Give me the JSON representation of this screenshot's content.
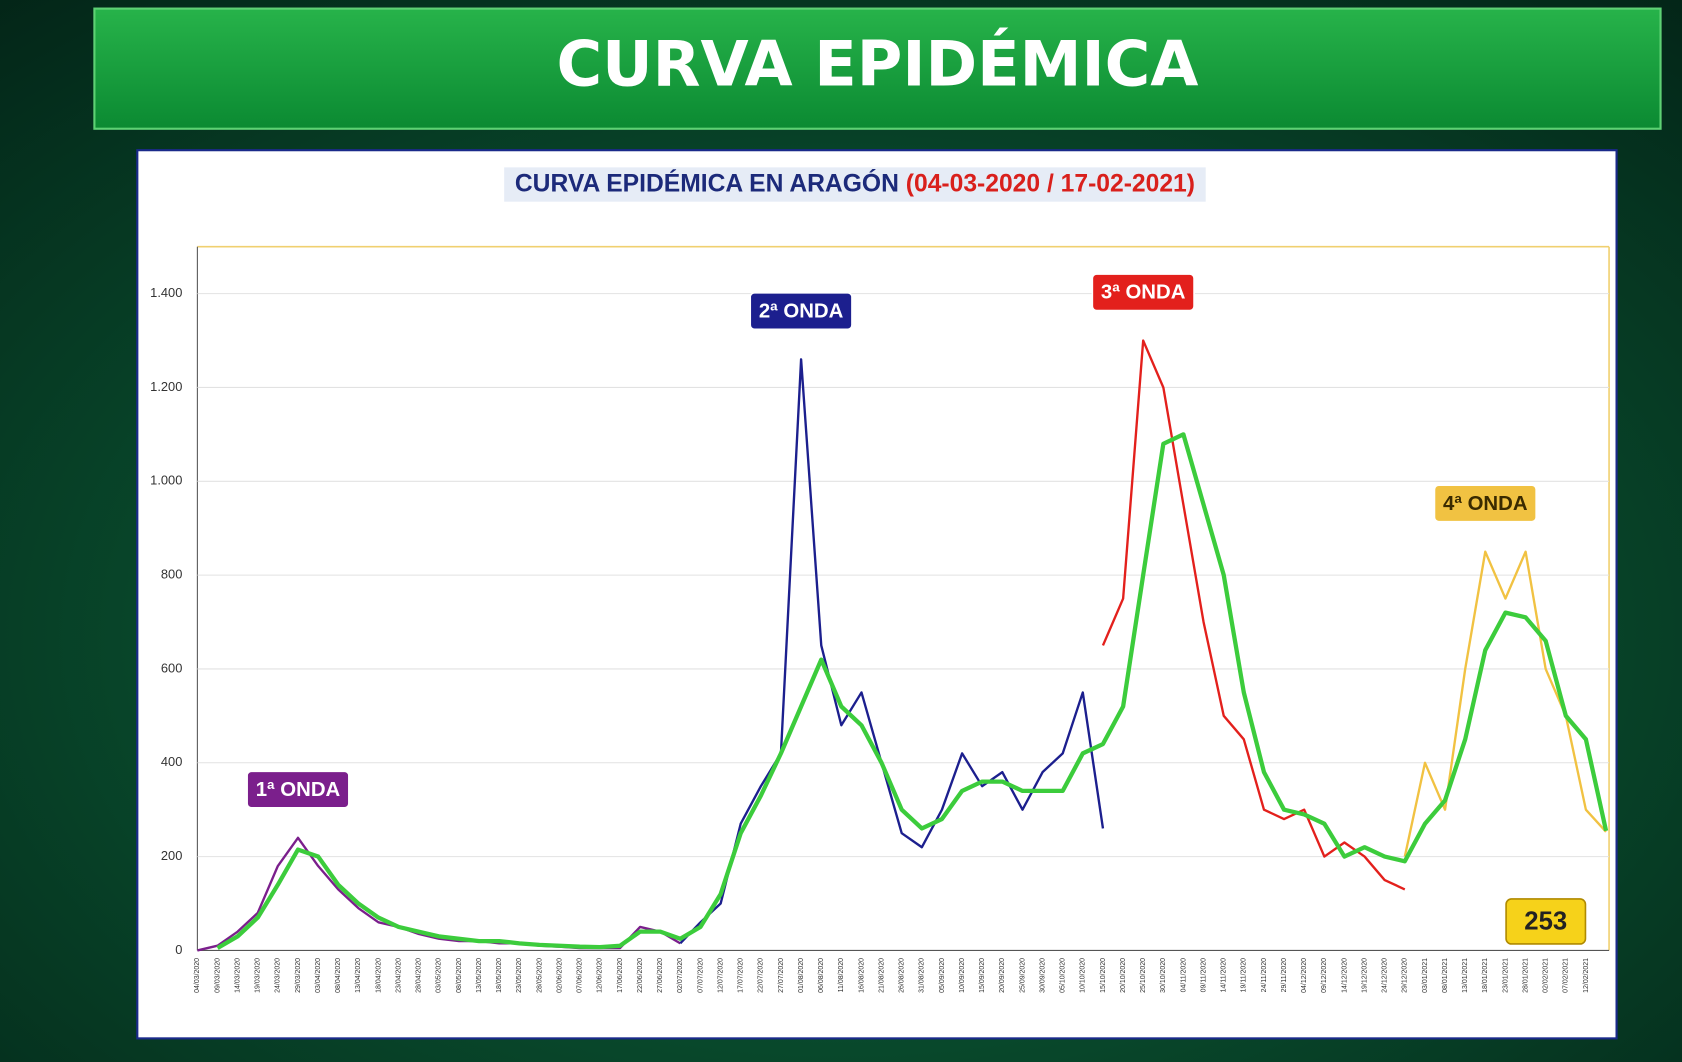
{
  "header_title": "CURVA EPIDÉMICA",
  "chart_data": {
    "type": "line",
    "title": "CURVA EPIDÉMICA EN ARAGÓN",
    "title_dates": "(04-03-2020 / 17-02-2021)",
    "categories": [
      "04/03/2020",
      "09/03/2020",
      "14/03/2020",
      "19/03/2020",
      "24/03/2020",
      "29/03/2020",
      "03/04/2020",
      "08/04/2020",
      "13/04/2020",
      "18/04/2020",
      "23/04/2020",
      "28/04/2020",
      "03/05/2020",
      "08/05/2020",
      "13/05/2020",
      "18/05/2020",
      "23/05/2020",
      "28/05/2020",
      "02/06/2020",
      "07/06/2020",
      "12/06/2020",
      "17/06/2020",
      "22/06/2020",
      "27/06/2020",
      "02/07/2020",
      "07/07/2020",
      "12/07/2020",
      "17/07/2020",
      "22/07/2020",
      "27/07/2020",
      "01/08/2020",
      "06/08/2020",
      "11/08/2020",
      "16/08/2020",
      "21/08/2020",
      "26/08/2020",
      "31/08/2020",
      "05/09/2020",
      "10/09/2020",
      "15/09/2020",
      "20/09/2020",
      "25/09/2020",
      "30/09/2020",
      "05/10/2020",
      "10/10/2020",
      "15/10/2020",
      "20/10/2020",
      "25/10/2020",
      "30/10/2020",
      "04/11/2020",
      "09/11/2020",
      "14/11/2020",
      "19/11/2020",
      "24/11/2020",
      "29/11/2020",
      "04/12/2020",
      "09/12/2020",
      "14/12/2020",
      "19/12/2020",
      "24/12/2020",
      "29/12/2020",
      "03/01/2021",
      "08/01/2021",
      "13/01/2021",
      "18/01/2021",
      "23/01/2021",
      "28/01/2021",
      "02/02/2021",
      "07/02/2021",
      "12/02/2021",
      null
    ],
    "series": [
      {
        "name": "1ª ONDA",
        "color": "#7b1f8c",
        "values": [
          0,
          10,
          40,
          80,
          180,
          240,
          180,
          130,
          90,
          60,
          50,
          35,
          25,
          20,
          20,
          15,
          15,
          10,
          8,
          5,
          5,
          5,
          50,
          40,
          15,
          null,
          null,
          null,
          null,
          null,
          null,
          null,
          null,
          null,
          null,
          null,
          null,
          null,
          null,
          null,
          null,
          null,
          null,
          null,
          null,
          null,
          null,
          null,
          null,
          null,
          null,
          null,
          null,
          null,
          null,
          null,
          null,
          null,
          null,
          null,
          null,
          null,
          null,
          null,
          null,
          null,
          null,
          null,
          null,
          null,
          null
        ]
      },
      {
        "name": "2ª ONDA",
        "color": "#1c1f8e",
        "values": [
          null,
          null,
          null,
          null,
          null,
          null,
          null,
          null,
          null,
          null,
          null,
          null,
          null,
          null,
          null,
          null,
          null,
          null,
          null,
          null,
          null,
          null,
          null,
          null,
          15,
          60,
          100,
          270,
          350,
          420,
          1260,
          650,
          480,
          550,
          400,
          250,
          220,
          300,
          420,
          350,
          380,
          300,
          380,
          420,
          550,
          260,
          null,
          null,
          null,
          null,
          null,
          null,
          null,
          null,
          null,
          null,
          null,
          null,
          null,
          null,
          null,
          null,
          null,
          null,
          null,
          null,
          null,
          null,
          null,
          null,
          null
        ]
      },
      {
        "name": "3ª ONDA",
        "color": "#e3201c",
        "values": [
          null,
          null,
          null,
          null,
          null,
          null,
          null,
          null,
          null,
          null,
          null,
          null,
          null,
          null,
          null,
          null,
          null,
          null,
          null,
          null,
          null,
          null,
          null,
          null,
          null,
          null,
          null,
          null,
          null,
          null,
          null,
          null,
          null,
          null,
          null,
          null,
          null,
          null,
          null,
          null,
          null,
          null,
          null,
          null,
          null,
          650,
          750,
          1300,
          1200,
          950,
          700,
          500,
          450,
          300,
          280,
          300,
          200,
          230,
          200,
          150,
          130,
          null,
          null,
          null,
          null,
          null,
          null,
          null,
          null,
          null,
          null
        ]
      },
      {
        "name": "4ª ONDA",
        "color": "#f1c242",
        "values": [
          null,
          null,
          null,
          null,
          null,
          null,
          null,
          null,
          null,
          null,
          null,
          null,
          null,
          null,
          null,
          null,
          null,
          null,
          null,
          null,
          null,
          null,
          null,
          null,
          null,
          null,
          null,
          null,
          null,
          null,
          null,
          null,
          null,
          null,
          null,
          null,
          null,
          null,
          null,
          null,
          null,
          null,
          null,
          null,
          null,
          null,
          null,
          null,
          null,
          null,
          null,
          null,
          null,
          null,
          null,
          null,
          null,
          null,
          null,
          null,
          200,
          400,
          300,
          600,
          850,
          750,
          850,
          600,
          500,
          300,
          253
        ]
      },
      {
        "color": "#3ccc3c",
        "values": [
          null,
          5,
          30,
          70,
          140,
          215,
          200,
          140,
          100,
          70,
          50,
          40,
          30,
          25,
          20,
          20,
          15,
          12,
          10,
          8,
          7,
          10,
          40,
          40,
          25,
          50,
          120,
          250,
          330,
          420,
          520,
          620,
          520,
          480,
          400,
          300,
          260,
          280,
          340,
          360,
          360,
          340,
          340,
          340,
          420,
          440,
          520,
          800,
          1080,
          1100,
          950,
          800,
          550,
          380,
          300,
          290,
          270,
          200,
          220,
          200,
          190,
          270,
          320,
          450,
          640,
          720,
          710,
          660,
          500,
          450,
          255
        ]
      }
    ],
    "ylim": [
      0,
      1500
    ],
    "yticks": [
      0,
      200,
      400,
      600,
      800,
      {
        "value": 1000,
        "label": "1.000"
      },
      {
        "value": 1200,
        "label": "1.200"
      },
      {
        "value": 1400,
        "label": "1.400"
      }
    ],
    "grid": true
  }
}
